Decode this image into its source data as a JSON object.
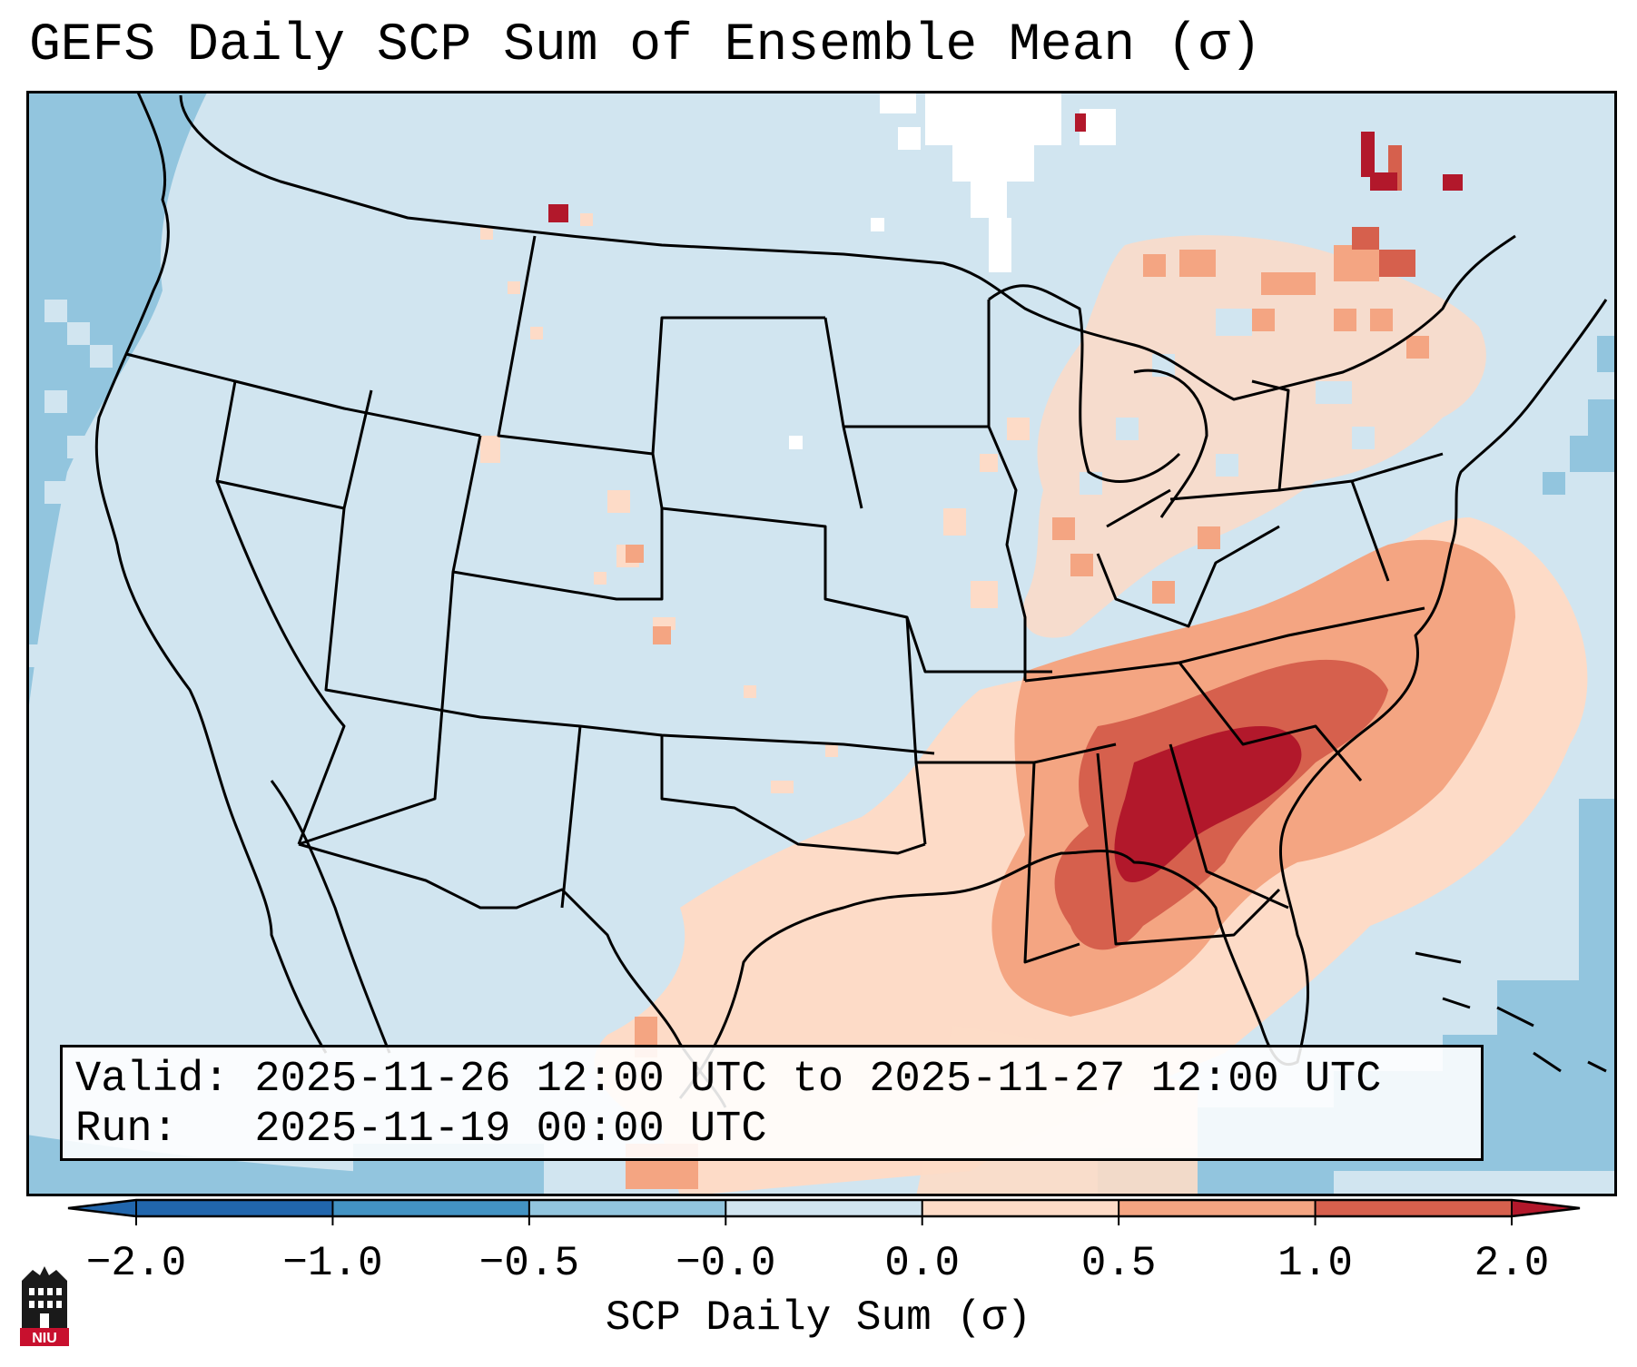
{
  "title": "GEFS Daily SCP Sum of Ensemble Mean (σ)",
  "info": {
    "valid_line": "Valid: 2025-11-26 12:00 UTC to 2025-11-27 12:00 UTC",
    "run_line": "Run:   2025-11-19 00:00 UTC"
  },
  "colorbar": {
    "label": "SCP Daily Sum (σ)",
    "ticks": [
      "−2.0",
      "−1.0",
      "−0.5",
      "−0.0",
      "0.0",
      "0.5",
      "1.0",
      "2.0"
    ],
    "bin_colors": [
      "#2166ac",
      "#4393c3",
      "#92c5de",
      "#d1e5f0",
      "#fddbc7",
      "#f4a582",
      "#d6604d",
      "#b2182b"
    ],
    "extend": "both"
  },
  "map": {
    "projection": "Lambert conformal, CONUS",
    "ocean_color": "#92c5de",
    "land_base_color": "#d1e5f0",
    "border_color": "#000000"
  },
  "logo": {
    "text": "NIU"
  },
  "colors": {
    "logo_red": "#c8102e",
    "logo_dark": "#1a1a1a"
  }
}
